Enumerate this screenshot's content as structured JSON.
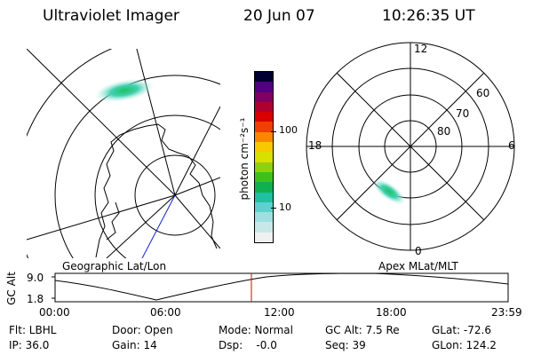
{
  "header": {
    "instrument": "Ultraviolet Imager",
    "date": "20 Jun 07",
    "time": "10:26:35 UT"
  },
  "colorbar": {
    "unit_label": "photon cm⁻²s⁻¹",
    "ticks": [
      "100",
      "10"
    ],
    "colors": [
      "#f0f0f0",
      "#c8e8e8",
      "#9fdfdf",
      "#5fd0d0",
      "#20c0a0",
      "#10b050",
      "#40c020",
      "#90d010",
      "#d8e000",
      "#f8c800",
      "#f88800",
      "#f04000",
      "#d80000",
      "#b00030",
      "#800060",
      "#500080",
      "#000030"
    ]
  },
  "left_panel": {
    "label": "Geographic Lat/Lon"
  },
  "right_panel": {
    "label": "Apex MLat/MLT",
    "mlt_labels": [
      "12",
      "18",
      "6",
      "0"
    ],
    "mlat_labels": [
      "60",
      "70",
      "80"
    ]
  },
  "timeline": {
    "ylabel": "GC Alt",
    "y_ticks": [
      "9.0",
      "1.8"
    ],
    "x_ticks": [
      "00:00",
      "06:00",
      "12:00",
      "18:00",
      "23:59"
    ]
  },
  "info": {
    "flt": "Flt: LBHL",
    "door": "Door: Open",
    "mode": "Mode: Normal",
    "gc_alt": "GC Alt: 7.5 Re",
    "glat": "GLat: -72.6",
    "ip": "IP: 36.0",
    "gain": "Gain: 14",
    "dsp": "Dsp:    -0.0",
    "seq": "Seq: 39",
    "glon": "GLon: 124.2"
  }
}
